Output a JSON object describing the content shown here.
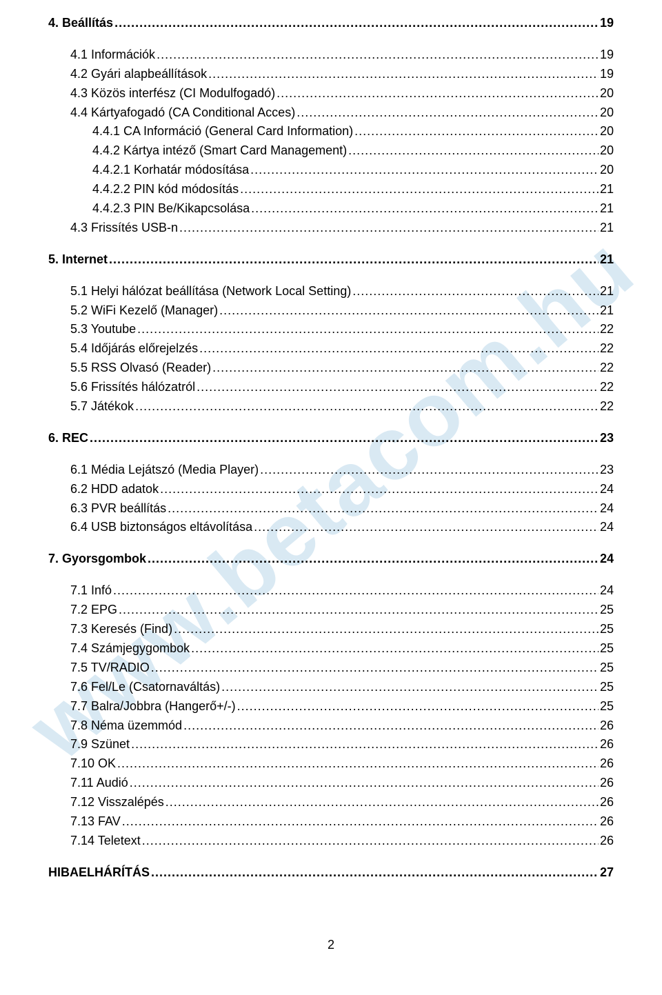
{
  "watermark": "www.betacom.hu",
  "page_number": "2",
  "toc": [
    {
      "level": "bold",
      "title": "4. Beállítás",
      "page": "19"
    },
    {
      "level": "gap"
    },
    {
      "level": "sub",
      "title": "4.1 Információk",
      "page": "19"
    },
    {
      "level": "sub",
      "title": "4.2 Gyári alapbeállítások",
      "page": "19"
    },
    {
      "level": "sub",
      "title": "4.3 Közös interfész (CI Modulfogadó)",
      "page": "20"
    },
    {
      "level": "sub",
      "title": "4.4 Kártyafogadó (CA Conditional Acces)",
      "page": "20"
    },
    {
      "level": "subsub",
      "title": "4.4.1 CA Információ (General Card Information)",
      "page": "20"
    },
    {
      "level": "subsub",
      "title": "4.4.2 Kártya intéző (Smart Card Management)",
      "page": "20"
    },
    {
      "level": "subsub",
      "title": "4.4.2.1 Korhatár módosítása",
      "page": "20"
    },
    {
      "level": "subsub",
      "title": "4.4.2.2 PIN kód módosítás",
      "page": "21"
    },
    {
      "level": "subsub",
      "title": "4.4.2.3 PIN Be/Kikapcsolása",
      "page": "21"
    },
    {
      "level": "sub",
      "title": "4.3 Frissítés USB-n",
      "page": "21"
    },
    {
      "level": "gap"
    },
    {
      "level": "bold",
      "title": "5. Internet",
      "page": "21"
    },
    {
      "level": "gap"
    },
    {
      "level": "sub",
      "title": "5.1 Helyi hálózat beállítása (Network Local Setting)",
      "page": "21"
    },
    {
      "level": "sub",
      "title": "5.2 WiFi Kezelő (Manager)",
      "page": "21"
    },
    {
      "level": "sub",
      "title": "5.3 Youtube",
      "page": "22"
    },
    {
      "level": "sub",
      "title": "5.4 Időjárás előrejelzés",
      "page": "22"
    },
    {
      "level": "sub",
      "title": "5.5 RSS Olvasó (Reader)",
      "page": "22"
    },
    {
      "level": "sub",
      "title": "5.6 Frissítés hálózatról",
      "page": "22"
    },
    {
      "level": "sub",
      "title": "5.7 Játékok",
      "page": "22"
    },
    {
      "level": "gap"
    },
    {
      "level": "bold",
      "title": "6. REC",
      "page": "23"
    },
    {
      "level": "gap"
    },
    {
      "level": "sub",
      "title": "6.1 Média Lejátszó (Media Player)",
      "page": "23"
    },
    {
      "level": "sub",
      "title": "6.2 HDD adatok",
      "page": "24"
    },
    {
      "level": "sub",
      "title": "6.3 PVR beállítás",
      "page": "24"
    },
    {
      "level": "sub",
      "title": "6.4 USB biztonságos eltávolítása",
      "page": "24"
    },
    {
      "level": "gap"
    },
    {
      "level": "bold",
      "title": "7. Gyorsgombok",
      "page": "24"
    },
    {
      "level": "gap"
    },
    {
      "level": "sub",
      "title": "7.1 Infó",
      "page": "24"
    },
    {
      "level": "sub",
      "title": "7.2 EPG",
      "page": "25"
    },
    {
      "level": "sub",
      "title": "7.3 Keresés (Find)",
      "page": "25"
    },
    {
      "level": "sub",
      "title": "7.4 Számjegygombok",
      "page": "25"
    },
    {
      "level": "sub",
      "title": "7.5 TV/RADIO",
      "page": "25"
    },
    {
      "level": "sub",
      "title": "7.6 Fel/Le (Csatornaváltás)",
      "page": "25"
    },
    {
      "level": "sub",
      "title": "7.7 Balra/Jobbra (Hangerő+/-)",
      "page": "25"
    },
    {
      "level": "sub",
      "title": "7.8 Néma üzemmód",
      "page": "26"
    },
    {
      "level": "sub",
      "title": "7.9 Szünet",
      "page": "26"
    },
    {
      "level": "sub",
      "title": "7.10 OK",
      "page": "26"
    },
    {
      "level": "sub",
      "title": "7.11 Audió",
      "page": "26"
    },
    {
      "level": "sub",
      "title": "7.12 Visszalépés",
      "page": "26"
    },
    {
      "level": "sub",
      "title": "7.13 FAV",
      "page": "26"
    },
    {
      "level": "sub",
      "title": "7.14 Teletext",
      "page": "26"
    },
    {
      "level": "gap"
    },
    {
      "level": "bold",
      "title": "HIBAELHÁRÍTÁS",
      "page": "27"
    }
  ]
}
